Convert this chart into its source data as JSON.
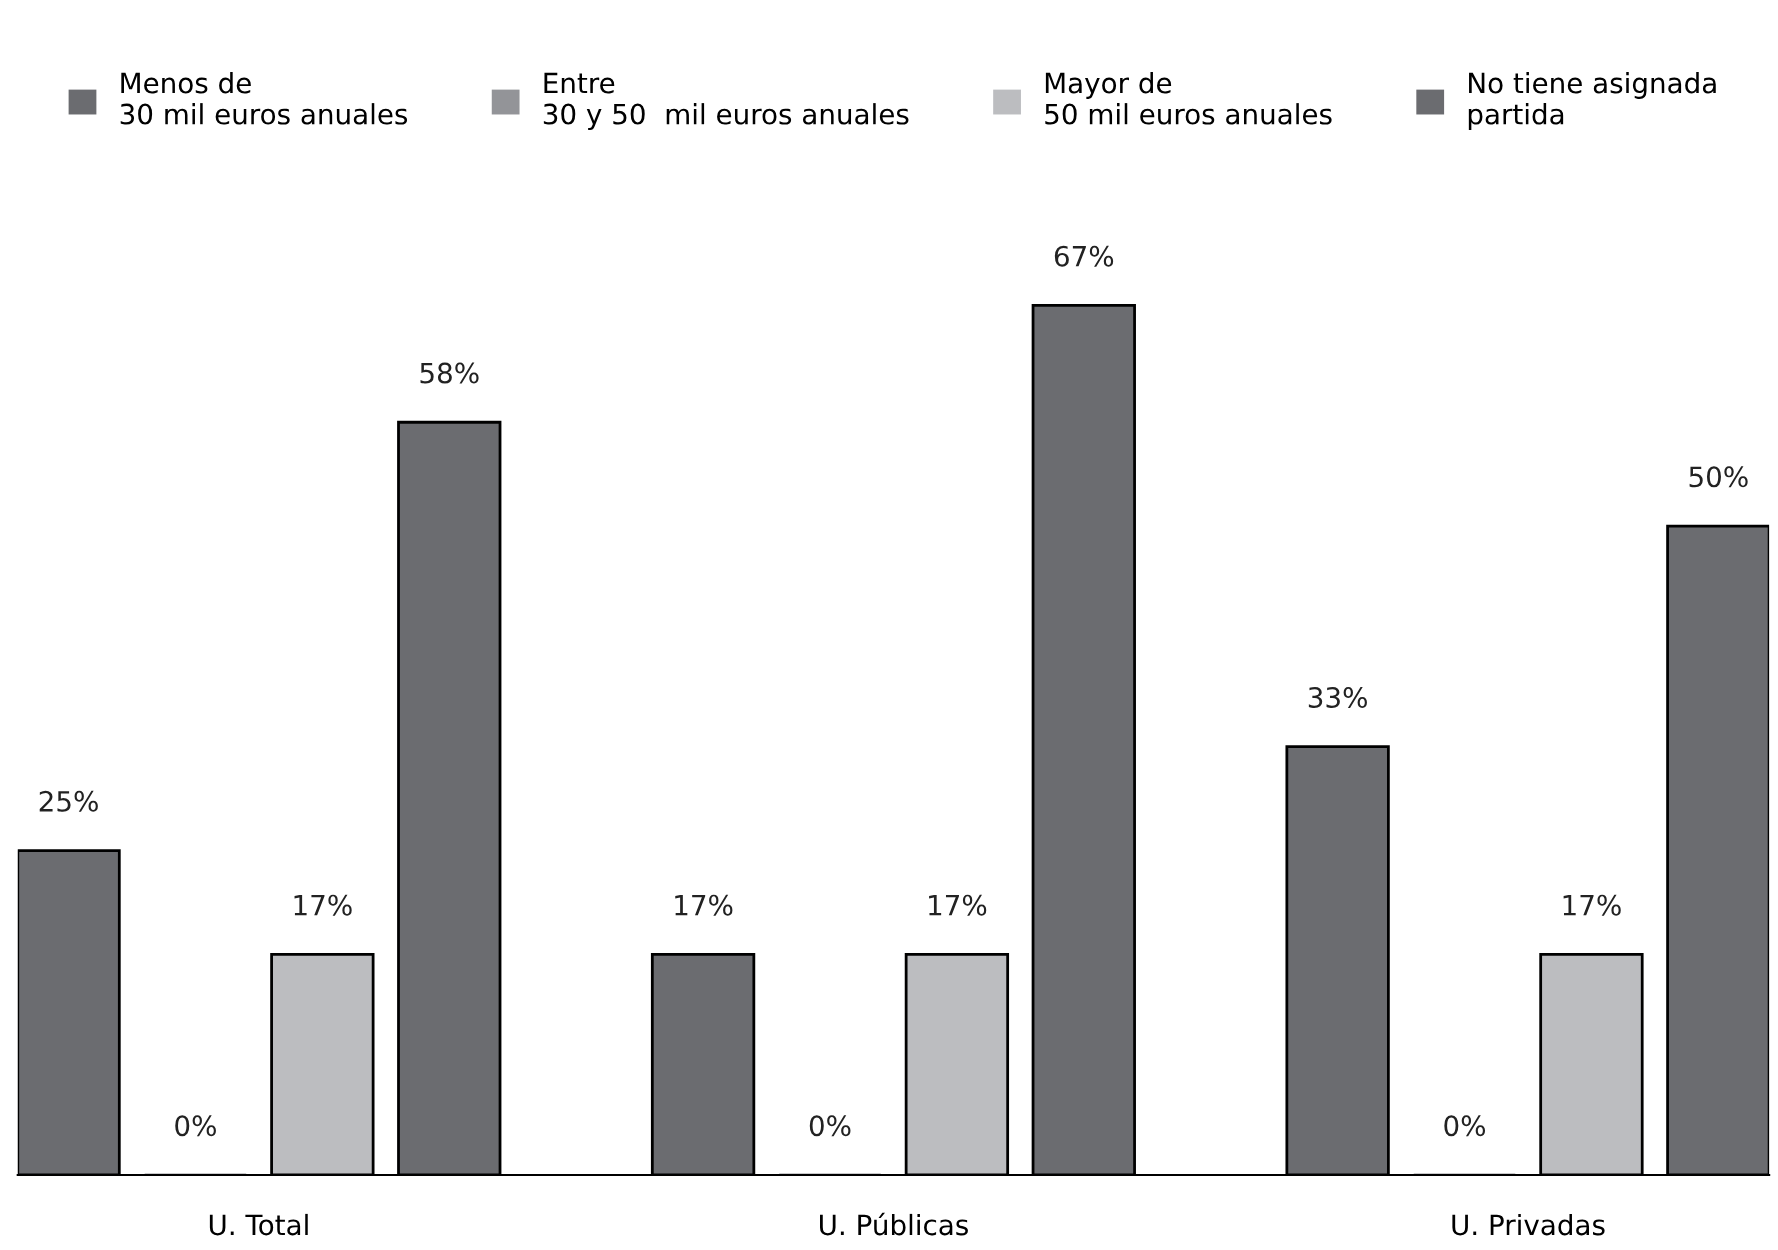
{
  "chart_data": {
    "type": "bar",
    "categories": [
      "U. Total",
      "U. Públicas",
      "U. Privadas"
    ],
    "series": [
      {
        "name": "Menos de\n30 mil euros anuales",
        "color": "#6b6c70",
        "values": [
          25,
          17,
          33
        ],
        "value_labels": [
          "25%",
          "17%",
          "33%"
        ]
      },
      {
        "name": "Entre\n30 y 50  mil euros anuales",
        "color": "#939498",
        "values": [
          0,
          0,
          0
        ],
        "value_labels": [
          "0%",
          "0%",
          "0%"
        ]
      },
      {
        "name": "Mayor de\n50 mil euros anuales",
        "color": "#bcbdc0",
        "values": [
          17,
          17,
          17
        ],
        "value_labels": [
          "17%",
          "17%",
          "17%"
        ]
      },
      {
        "name": "No tiene asignada\npartida",
        "color": "#6b6c70",
        "values": [
          58,
          67,
          50
        ],
        "value_labels": [
          "58%",
          "67%",
          "50%"
        ]
      }
    ],
    "legend": "top"
  }
}
